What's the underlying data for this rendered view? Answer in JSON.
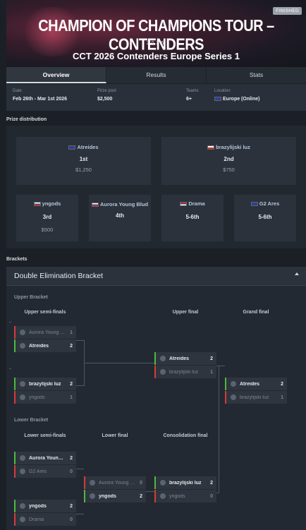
{
  "hero": {
    "title": "CHAMPION OF CHAMPIONS TOUR – CONTENDERS",
    "year": "2026",
    "subtitle": "CCT 2026 Contenders Europe Series 1",
    "status": "FINISHED"
  },
  "tabs": [
    {
      "label": "Overview",
      "active": true
    },
    {
      "label": "Results",
      "active": false
    },
    {
      "label": "Stats",
      "active": false
    }
  ],
  "info": {
    "date_label": "Date",
    "date": "Feb 26th - Mar 1st 2026",
    "prize_label": "Prize pool",
    "prize": "$2,500",
    "teams_label": "Teams",
    "teams": "6+",
    "location_label": "Location",
    "location": "Europe (Online)"
  },
  "prize_section_label": "Prize distribution",
  "prizes": [
    {
      "team": "Atreides",
      "place": "1st",
      "money": "$1,250",
      "flag": "eu"
    },
    {
      "team": "brazylijski luz",
      "place": "2nd",
      "money": "$750",
      "flag": "pl"
    },
    {
      "team": "yngods",
      "place": "3rd",
      "money": "$500",
      "flag": "ru"
    },
    {
      "team": "Aurora Young Blud",
      "place": "4th",
      "money": "",
      "flag": "ru"
    },
    {
      "team": "Drama",
      "place": "5-6th",
      "money": "",
      "flag": "rs"
    },
    {
      "team": "G2 Ares",
      "place": "5-6th",
      "money": "",
      "flag": "eu"
    }
  ],
  "brackets_section_label": "Brackets",
  "bracket": {
    "title": "Double Elimination Bracket",
    "upper_label": "Upper Bracket",
    "lower_label": "Lower Bracket",
    "rounds": {
      "upper_semis": "Upper semi-finals",
      "upper_final": "Upper final",
      "grand_final": "Grand final",
      "lower_semis": "Lower semi-finals",
      "lower_final": "Lower final",
      "consolidation_final": "Consolidation final"
    },
    "matches": {
      "us1": [
        {
          "name": "Aurora Young ...",
          "score": "1",
          "win": false
        },
        {
          "name": "Atreides",
          "score": "2",
          "win": true
        }
      ],
      "us2": [
        {
          "name": "brazylijski luz",
          "score": "2",
          "win": true
        },
        {
          "name": "yngods",
          "score": "1",
          "win": false
        }
      ],
      "uf": [
        {
          "name": "Atreides",
          "score": "2",
          "win": true
        },
        {
          "name": "brazylijski luz",
          "score": "1",
          "win": false
        }
      ],
      "gf": [
        {
          "name": "Atreides",
          "score": "2",
          "win": true
        },
        {
          "name": "brazylijski luz",
          "score": "1",
          "win": false
        }
      ],
      "ls1": [
        {
          "name": "Aurora Young ...",
          "score": "2",
          "win": true
        },
        {
          "name": "G2 Ares",
          "score": "0",
          "win": false
        }
      ],
      "ls2": [
        {
          "name": "yngods",
          "score": "2",
          "win": true
        },
        {
          "name": "Drama",
          "score": "0",
          "win": false
        }
      ],
      "lf": [
        {
          "name": "Aurora Young Bl...",
          "score": "0",
          "win": false
        },
        {
          "name": "yngods",
          "score": "2",
          "win": true
        }
      ],
      "cf": [
        {
          "name": "brazylijski luz",
          "score": "2",
          "win": true
        },
        {
          "name": "yngods",
          "score": "0",
          "win": false
        }
      ]
    }
  },
  "colors": {
    "win": "#4cba3f",
    "lose": "#d83a3a",
    "accent": "#b6c7dc"
  }
}
